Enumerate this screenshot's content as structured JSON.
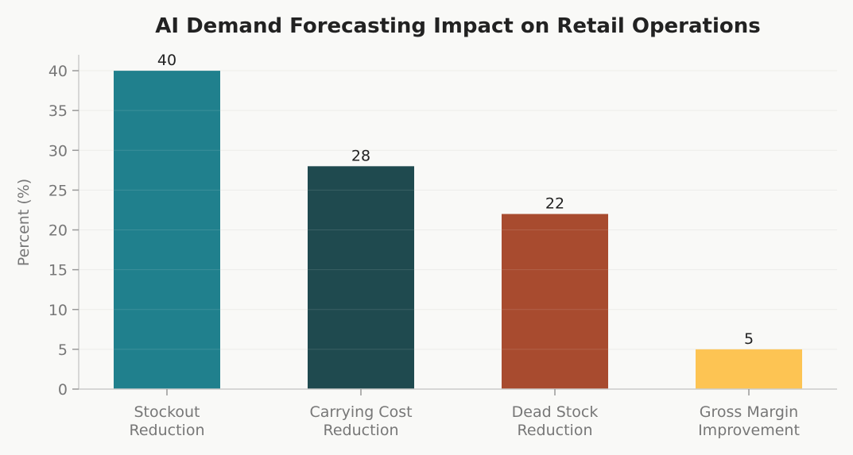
{
  "chart_data": {
    "type": "bar",
    "title": "AI Demand Forecasting Impact on Retail Operations",
    "xlabel": "",
    "ylabel": "Percent (%)",
    "categories": [
      [
        "Stockout",
        "Reduction"
      ],
      [
        "Carrying Cost",
        "Reduction"
      ],
      [
        "Dead Stock",
        "Reduction"
      ],
      [
        "Gross Margin",
        "Improvement"
      ]
    ],
    "values": [
      40,
      28,
      22,
      5
    ],
    "value_labels": [
      "40",
      "28",
      "22",
      "5"
    ],
    "colors": [
      "#20808d",
      "#1f4a4f",
      "#a84b2f",
      "#fdc453"
    ],
    "ylim": [
      0,
      42
    ],
    "yticks": [
      0,
      5,
      10,
      15,
      20,
      25,
      30,
      35,
      40
    ],
    "ytick_labels": [
      "0",
      "5",
      "10",
      "15",
      "20",
      "25",
      "30",
      "35",
      "40"
    ],
    "grid": "horizontal",
    "legend": "none"
  }
}
